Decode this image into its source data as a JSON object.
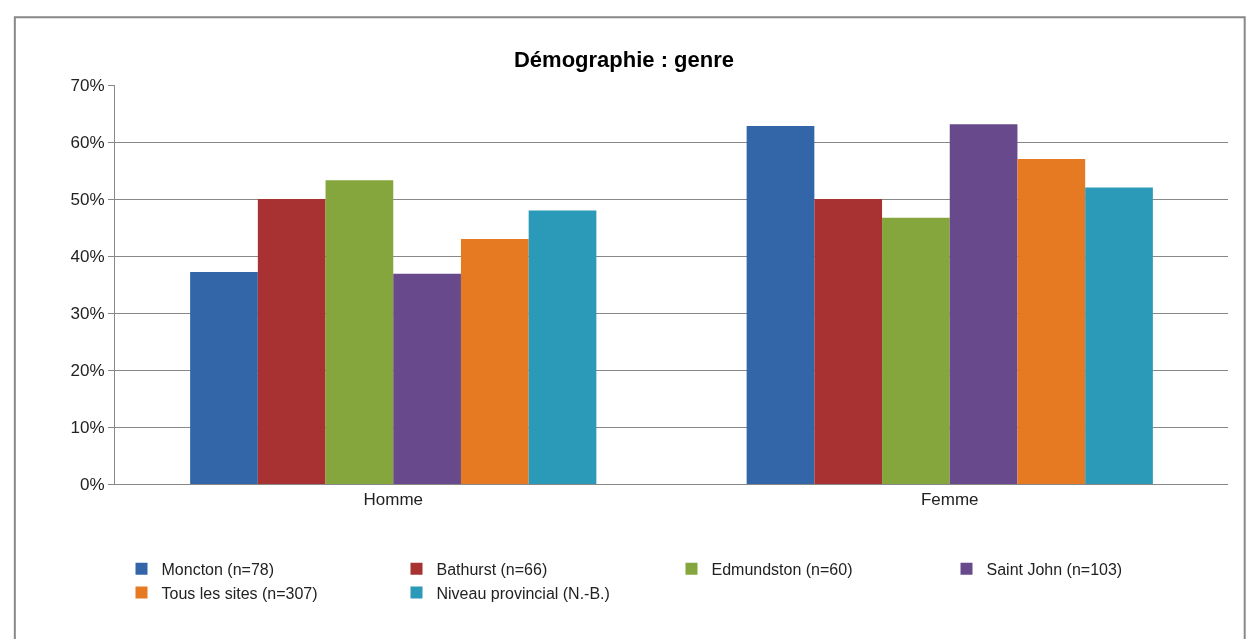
{
  "chart_data": {
    "type": "bar",
    "title": "Démographie : genre",
    "categories": [
      "Homme",
      "Femme"
    ],
    "series": [
      {
        "name": "Moncton (n=78)",
        "color": "#3366a8",
        "values": [
          37.2,
          62.8
        ]
      },
      {
        "name": "Bathurst (n=66)",
        "color": "#a83232",
        "values": [
          50,
          50
        ]
      },
      {
        "name": "Edmundston (n=60)",
        "color": "#84a63c",
        "values": [
          53.3,
          46.7
        ]
      },
      {
        "name": "Saint John (n=103)",
        "color": "#684a8c",
        "values": [
          36.9,
          63.1
        ]
      },
      {
        "name": "Tous les sites (n=307)",
        "color": "#e57a22",
        "values": [
          43,
          57
        ]
      },
      {
        "name": "Niveau provincial (N.-B.)",
        "color": "#2b9ab8",
        "values": [
          48,
          52
        ]
      }
    ],
    "ylim": [
      0,
      70
    ],
    "yticks": [
      {
        "value": 0,
        "label": "0%"
      },
      {
        "value": 10,
        "label": "10%"
      },
      {
        "value": 20,
        "label": "20%"
      },
      {
        "value": 30,
        "label": "30%"
      },
      {
        "value": 40,
        "label": "40%"
      },
      {
        "value": 50,
        "label": "50%"
      },
      {
        "value": 60,
        "label": "60%"
      },
      {
        "value": 70,
        "label": "70%"
      }
    ],
    "grid": "y",
    "legend": "bottom"
  }
}
